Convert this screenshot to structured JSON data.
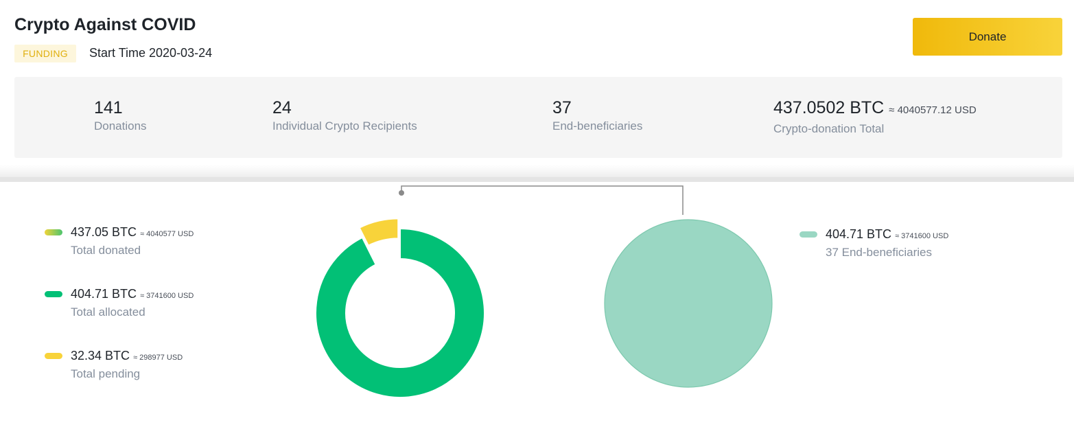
{
  "header": {
    "title": "Crypto Against COVID",
    "status_badge": "FUNDING",
    "start_time": "Start Time 2020-03-24",
    "donate_label": "Donate"
  },
  "stats": [
    {
      "value": "141",
      "label": "Donations"
    },
    {
      "value": "24",
      "label": "Individual Crypto Recipients"
    },
    {
      "value": "37",
      "label": "End-beneficiaries"
    },
    {
      "value": "437.0502 BTC",
      "approx": "≈ 4040577.12 USD",
      "label": "Crypto-donation Total"
    }
  ],
  "legend_left": [
    {
      "value": "437.05 BTC",
      "approx": "≈ 4040577 USD",
      "label": "Total donated",
      "color": "#f0d43a",
      "color2": "#4cc46e"
    },
    {
      "value": "404.71 BTC",
      "approx": "≈ 3741600 USD",
      "label": "Total allocated",
      "color": "#02c076"
    },
    {
      "value": "32.34 BTC",
      "approx": "≈ 298977 USD",
      "label": "Total pending",
      "color": "#f8d33a"
    }
  ],
  "legend_right": [
    {
      "value": "404.71 BTC",
      "approx": "≈ 3741600 USD",
      "label": "37 End-beneficiaries",
      "color": "#9ad7c3"
    }
  ],
  "chart_data": [
    {
      "type": "pie",
      "subtype": "donut",
      "categories": [
        "Total allocated",
        "Total pending"
      ],
      "values": [
        404.71,
        32.34
      ],
      "colors": [
        "#02c076",
        "#f8d33a"
      ],
      "exploded": "Total pending"
    },
    {
      "type": "pie",
      "categories": [
        "37 End-beneficiaries"
      ],
      "values": [
        404.71
      ],
      "colors": [
        "#9ad7c3"
      ]
    }
  ]
}
